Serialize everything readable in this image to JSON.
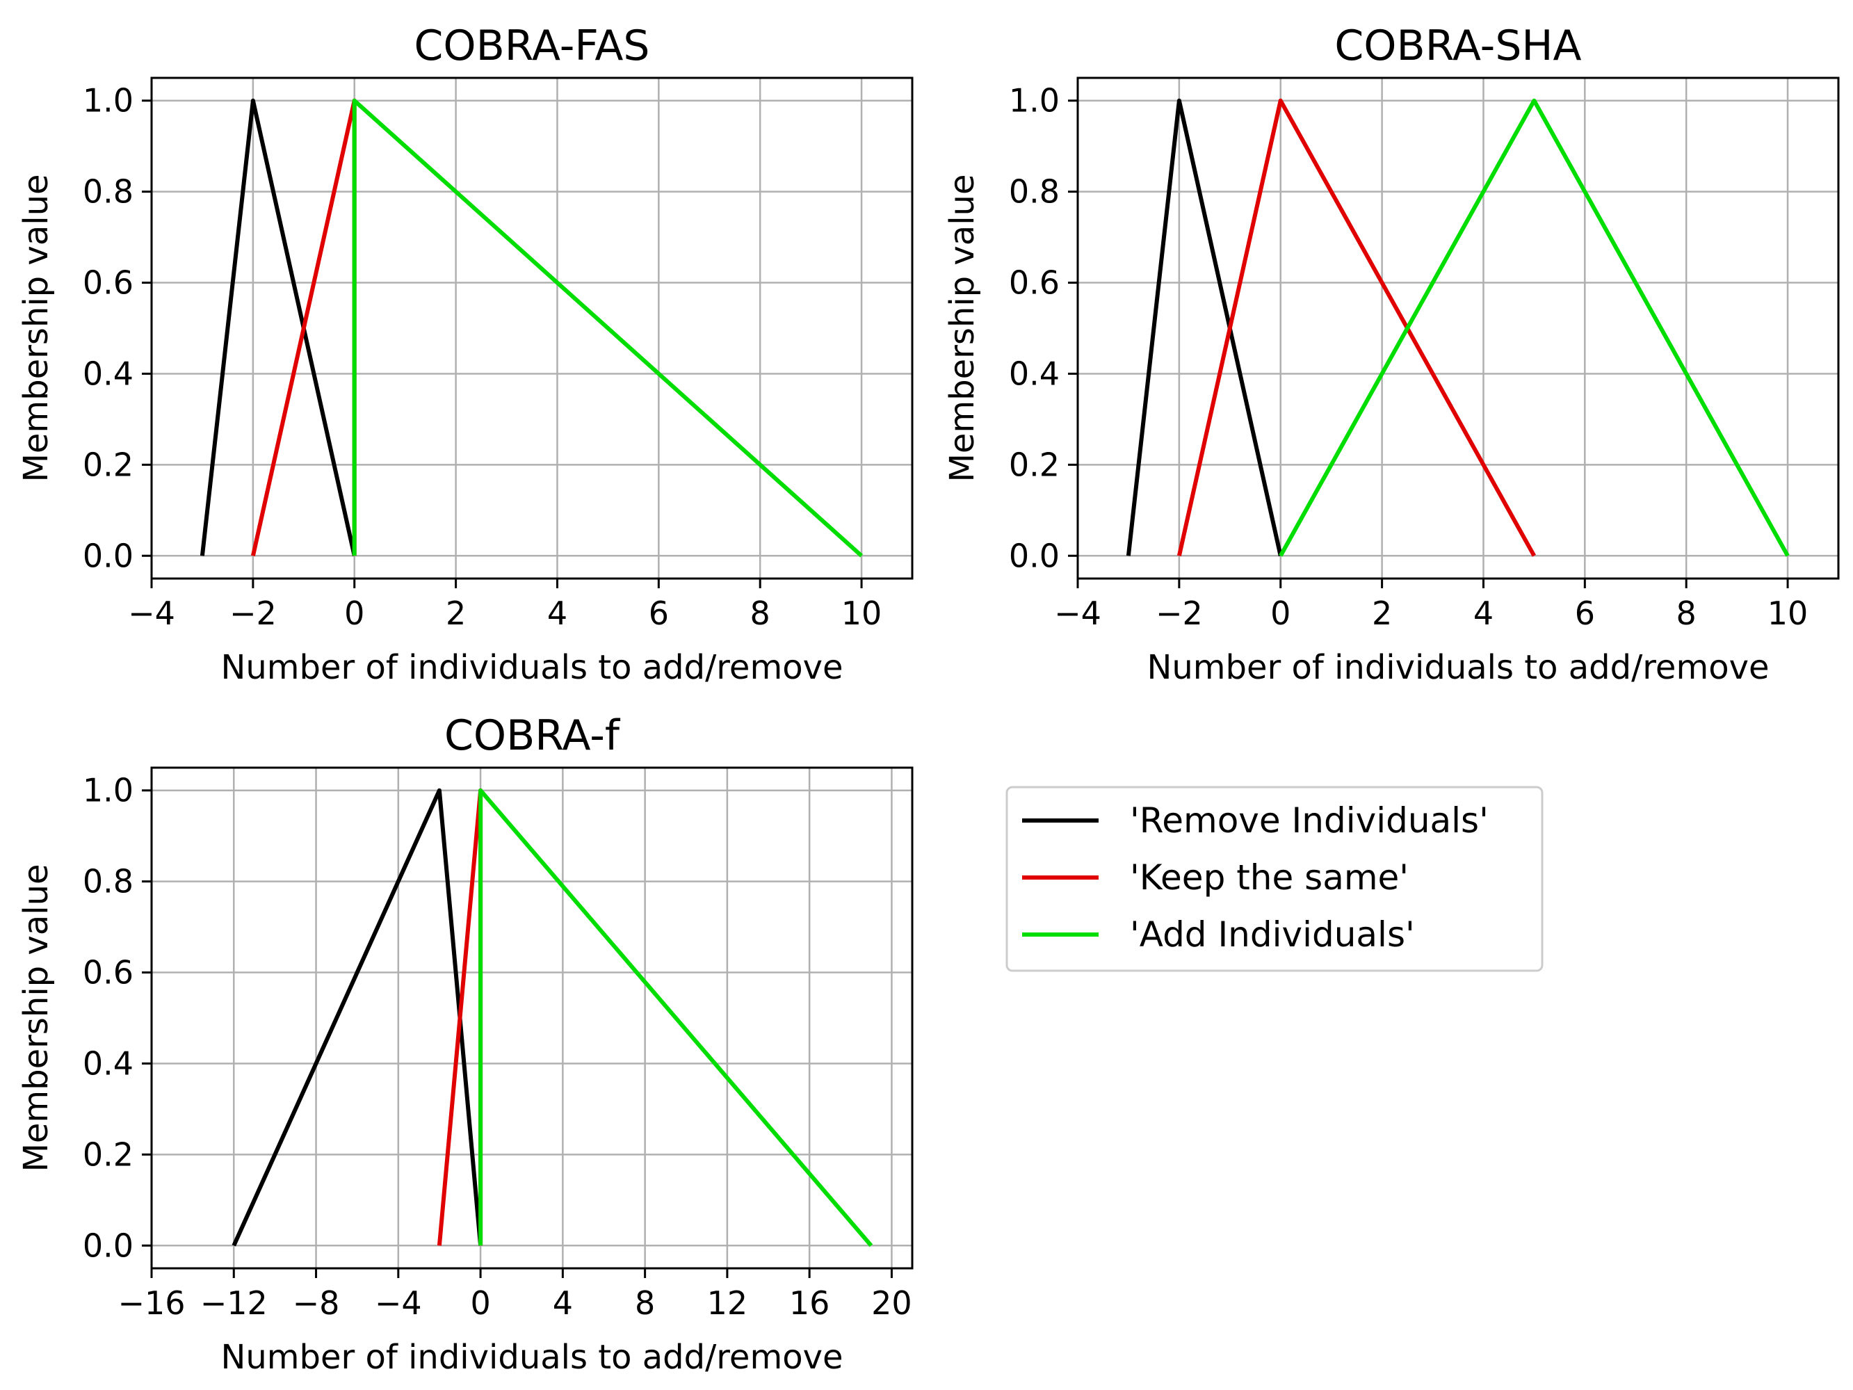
{
  "chart_data": [
    {
      "type": "line",
      "title": "COBRA-FAS",
      "xlabel": "Number of individuals to add/remove",
      "ylabel": "Membership value",
      "xlim": [
        -4,
        11
      ],
      "ylim": [
        -0.05,
        1.05
      ],
      "xticks": [
        -4,
        -2,
        0,
        2,
        4,
        6,
        8,
        10
      ],
      "xtick_labels": [
        "−4",
        "−2",
        "0",
        "2",
        "4",
        "6",
        "8",
        "10"
      ],
      "yticks": [
        0,
        0.2,
        0.4,
        0.6,
        0.8,
        1.0
      ],
      "ytick_labels": [
        "0.0",
        "0.2",
        "0.4",
        "0.6",
        "0.8",
        "1.0"
      ],
      "grid": true,
      "series": [
        {
          "name": "'Remove Individuals'",
          "color": "#000000",
          "x": [
            -3,
            -2,
            0
          ],
          "y": [
            0,
            1,
            0
          ]
        },
        {
          "name": "'Keep the same'",
          "color": "#e00000",
          "x": [
            -2,
            0,
            0
          ],
          "y": [
            0,
            1,
            0
          ]
        },
        {
          "name": "'Add Individuals'",
          "color": "#00dd00",
          "x": [
            0,
            0,
            10
          ],
          "y": [
            0,
            1,
            0
          ]
        }
      ]
    },
    {
      "type": "line",
      "title": "COBRA-SHA",
      "xlabel": "Number of individuals to add/remove",
      "ylabel": "Membership value",
      "xlim": [
        -4,
        11
      ],
      "ylim": [
        -0.05,
        1.05
      ],
      "xticks": [
        -4,
        -2,
        0,
        2,
        4,
        6,
        8,
        10
      ],
      "xtick_labels": [
        "−4",
        "−2",
        "0",
        "2",
        "4",
        "6",
        "8",
        "10"
      ],
      "yticks": [
        0,
        0.2,
        0.4,
        0.6,
        0.8,
        1.0
      ],
      "ytick_labels": [
        "0.0",
        "0.2",
        "0.4",
        "0.6",
        "0.8",
        "1.0"
      ],
      "grid": true,
      "series": [
        {
          "name": "'Remove Individuals'",
          "color": "#000000",
          "x": [
            -3,
            -2,
            0
          ],
          "y": [
            0,
            1,
            0
          ]
        },
        {
          "name": "'Keep the same'",
          "color": "#e00000",
          "x": [
            -2,
            0,
            5
          ],
          "y": [
            0,
            1,
            0
          ]
        },
        {
          "name": "'Add Individuals'",
          "color": "#00dd00",
          "x": [
            0,
            5,
            10
          ],
          "y": [
            0,
            1,
            0
          ]
        }
      ]
    },
    {
      "type": "line",
      "title": "COBRA-f",
      "xlabel": "Number of individuals to add/remove",
      "ylabel": "Membership value",
      "xlim": [
        -16,
        21
      ],
      "ylim": [
        -0.05,
        1.05
      ],
      "xticks": [
        -16,
        -12,
        -8,
        -4,
        0,
        4,
        8,
        12,
        16,
        20
      ],
      "xtick_labels": [
        "−16",
        "−12",
        "−8",
        "−4",
        "0",
        "4",
        "8",
        "12",
        "16",
        "20"
      ],
      "yticks": [
        0,
        0.2,
        0.4,
        0.6,
        0.8,
        1.0
      ],
      "ytick_labels": [
        "0.0",
        "0.2",
        "0.4",
        "0.6",
        "0.8",
        "1.0"
      ],
      "grid": true,
      "series": [
        {
          "name": "'Remove Individuals'",
          "color": "#000000",
          "x": [
            -12,
            -2,
            0
          ],
          "y": [
            0,
            1,
            0
          ]
        },
        {
          "name": "'Keep the same'",
          "color": "#e00000",
          "x": [
            -2,
            0,
            0
          ],
          "y": [
            0,
            1,
            0
          ]
        },
        {
          "name": "'Add Individuals'",
          "color": "#00dd00",
          "x": [
            0,
            0,
            19
          ],
          "y": [
            0,
            1,
            0
          ]
        }
      ]
    }
  ],
  "legend": {
    "placement": "bottom-right",
    "entries": [
      {
        "label": "'Remove Individuals'",
        "color": "#000000"
      },
      {
        "label": "'Keep the same'",
        "color": "#e00000"
      },
      {
        "label": "'Add Individuals'",
        "color": "#00dd00"
      }
    ]
  }
}
